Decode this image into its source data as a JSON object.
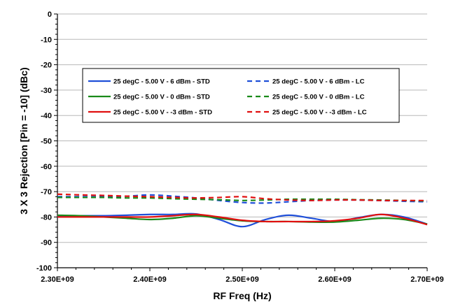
{
  "chart_data": {
    "type": "line",
    "title": "",
    "xlabel": "RF Freq (Hz)",
    "ylabel": "3 X 3 Rejection [Pin = -10] (dBc)",
    "xlim": [
      2300000000,
      2700000000
    ],
    "ylim": [
      -100,
      0
    ],
    "x_ticks": [
      2300000000,
      2400000000,
      2500000000,
      2600000000,
      2700000000
    ],
    "x_tick_labels": [
      "2.30E+09",
      "2.40E+09",
      "2.50E+09",
      "2.60E+09",
      "2.70E+09"
    ],
    "y_ticks": [
      0,
      -10,
      -20,
      -30,
      -40,
      -50,
      -60,
      -70,
      -80,
      -90,
      -100
    ],
    "y_tick_labels": [
      "0",
      "-10",
      "-20",
      "-30",
      "-40",
      "-50",
      "-60",
      "-70",
      "-80",
      "-90",
      "-100"
    ],
    "grid": "horizontal",
    "legend_position": "upper-center",
    "x": [
      2300000000,
      2325000000,
      2350000000,
      2375000000,
      2400000000,
      2425000000,
      2450000000,
      2475000000,
      2500000000,
      2525000000,
      2550000000,
      2575000000,
      2600000000,
      2625000000,
      2650000000,
      2675000000,
      2700000000
    ],
    "series": [
      {
        "name": "25 degC - 5.00 V - 6 dBm - STD",
        "color": "#1f4fd8",
        "dash": "solid",
        "values": [
          -79.5,
          -79.5,
          -79.5,
          -79.3,
          -79.0,
          -79.0,
          -78.8,
          -81.0,
          -83.8,
          -81.0,
          -79.3,
          -80.5,
          -81.8,
          -80.3,
          -79.0,
          -80.0,
          -82.8
        ]
      },
      {
        "name": "25 degC - 5.00 V - 6 dBm - LC",
        "color": "#1f4fd8",
        "dash": "dashed",
        "values": [
          -72.0,
          -72.0,
          -72.0,
          -71.8,
          -71.3,
          -71.8,
          -72.5,
          -73.5,
          -74.3,
          -74.5,
          -74.0,
          -73.5,
          -73.3,
          -73.3,
          -73.5,
          -73.8,
          -74.0
        ]
      },
      {
        "name": "25 degC - 5.00 V - 0 dBm - STD",
        "color": "#1a8a1a",
        "dash": "solid",
        "values": [
          -79.3,
          -79.5,
          -80.0,
          -80.5,
          -81.0,
          -80.5,
          -79.5,
          -80.5,
          -81.5,
          -81.8,
          -81.8,
          -82.0,
          -82.0,
          -81.3,
          -80.5,
          -81.0,
          -82.8
        ]
      },
      {
        "name": "25 degC - 5.00 V - 0 dBm - LC",
        "color": "#1a8a1a",
        "dash": "dashed",
        "values": [
          -72.3,
          -72.3,
          -72.3,
          -72.5,
          -72.5,
          -72.8,
          -73.0,
          -73.2,
          -73.5,
          -73.3,
          -73.0,
          -73.0,
          -73.0,
          -73.2,
          -73.3,
          -73.5,
          -73.7
        ]
      },
      {
        "name": "25 degC - 5.00 V - -3 dBm - STD",
        "color": "#e01010",
        "dash": "solid",
        "values": [
          -80.0,
          -80.0,
          -80.0,
          -80.0,
          -80.0,
          -79.5,
          -79.0,
          -80.0,
          -81.3,
          -81.8,
          -81.8,
          -81.8,
          -81.5,
          -80.5,
          -79.0,
          -80.5,
          -83.0
        ]
      },
      {
        "name": "25 degC - 5.00 V - -3 dBm - LC",
        "color": "#e01010",
        "dash": "dashed",
        "values": [
          -71.0,
          -71.3,
          -71.5,
          -71.8,
          -72.0,
          -72.3,
          -72.5,
          -72.3,
          -72.0,
          -72.8,
          -73.3,
          -73.5,
          -73.3,
          -73.3,
          -73.5,
          -73.5,
          -73.5
        ]
      }
    ]
  }
}
